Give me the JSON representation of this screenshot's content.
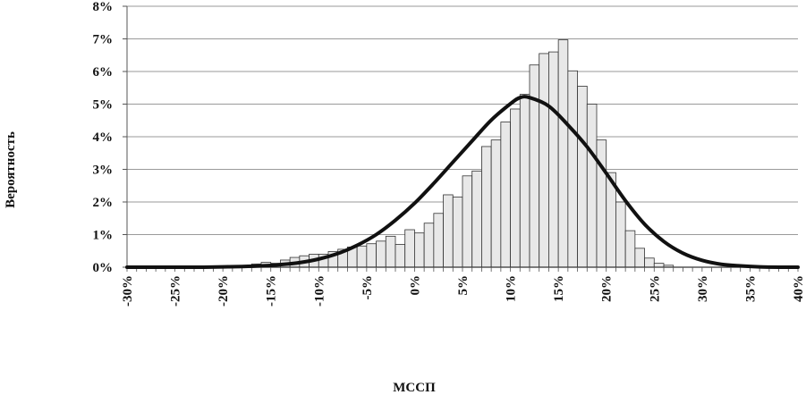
{
  "chart_data": {
    "type": "bar",
    "title": "",
    "xlabel": "МССП",
    "ylabel": "Вероятность",
    "xlim": [
      -30,
      40
    ],
    "ylim": [
      0,
      8
    ],
    "bin_width": 1,
    "y_ticks": [
      "0%",
      "1%",
      "2%",
      "3%",
      "4%",
      "5%",
      "6%",
      "7%",
      "8%"
    ],
    "x_ticks": [
      "-30%",
      "-25%",
      "-20%",
      "-15%",
      "-10%",
      "-5%",
      "0%",
      "5%",
      "10%",
      "15%",
      "20%",
      "25%",
      "30%",
      "35%",
      "40%"
    ],
    "grid": "horizontal",
    "colors": {
      "bar_fill": "#e8e8e8",
      "bar_stroke": "#333333",
      "curve": "#111111",
      "grid": "#9a9a9a"
    },
    "histogram": {
      "name": "",
      "bin_starts": [
        -18,
        -17,
        -16,
        -15,
        -14,
        -13,
        -12,
        -11,
        -10,
        -9,
        -8,
        -7,
        -6,
        -5,
        -4,
        -3,
        -2,
        -1,
        0,
        1,
        2,
        3,
        4,
        5,
        6,
        7,
        8,
        9,
        10,
        11,
        12,
        13,
        14,
        15,
        16,
        17,
        18,
        19,
        20,
        21,
        22,
        23,
        24,
        25,
        26
      ],
      "values": [
        0.05,
        0.1,
        0.15,
        0.12,
        0.22,
        0.3,
        0.35,
        0.4,
        0.4,
        0.48,
        0.55,
        0.62,
        0.65,
        0.72,
        0.8,
        0.95,
        0.7,
        1.15,
        1.05,
        1.35,
        1.65,
        2.22,
        2.15,
        2.8,
        2.95,
        3.7,
        3.9,
        4.45,
        4.85,
        5.3,
        6.2,
        6.55,
        6.6,
        6.97,
        6.02,
        5.55,
        5.0,
        3.9,
        2.9,
        2.0,
        1.12,
        0.58,
        0.28,
        0.12,
        0.06
      ]
    },
    "curve": {
      "name": "",
      "x": [
        -30,
        -28,
        -26,
        -24,
        -22,
        -20,
        -18,
        -16,
        -14,
        -12,
        -10,
        -8,
        -6,
        -4,
        -2,
        0,
        2,
        4,
        6,
        8,
        10,
        11,
        12,
        14,
        16,
        18,
        20,
        22,
        24,
        26,
        28,
        30,
        32,
        34,
        36,
        38,
        40
      ],
      "y": [
        0.0,
        0.0,
        0.0,
        0.0,
        0.0,
        0.01,
        0.02,
        0.04,
        0.08,
        0.14,
        0.25,
        0.42,
        0.67,
        1.0,
        1.44,
        1.96,
        2.57,
        3.22,
        3.87,
        4.51,
        5.01,
        5.2,
        5.2,
        4.94,
        4.36,
        3.69,
        2.88,
        2.04,
        1.32,
        0.79,
        0.43,
        0.21,
        0.09,
        0.04,
        0.01,
        0.0,
        0.0
      ]
    }
  }
}
